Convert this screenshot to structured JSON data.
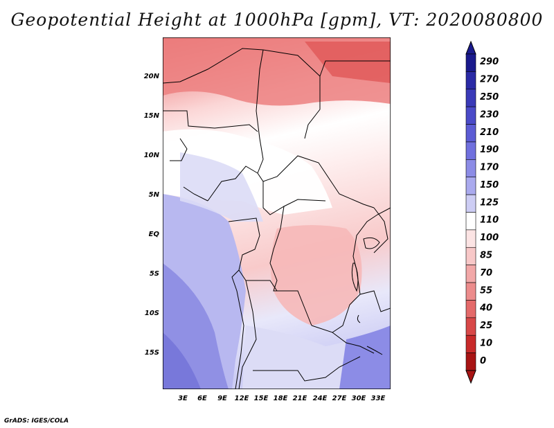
{
  "title": "Geopotential Height at 1000hPa [gpm], VT: 2020080800",
  "credit": "GrADS: IGES/COLA",
  "map": {
    "lat_labels": [
      "20N",
      "15N",
      "10N",
      "5N",
      "EQ",
      "5S",
      "10S",
      "15S"
    ],
    "lon_labels": [
      "3E",
      "6E",
      "9E",
      "12E",
      "15E",
      "18E",
      "21E",
      "24E",
      "27E",
      "30E",
      "33E"
    ]
  },
  "colorbar": {
    "levels": [
      "290",
      "270",
      "250",
      "230",
      "210",
      "190",
      "170",
      "150",
      "125",
      "110",
      "100",
      "85",
      "70",
      "55",
      "40",
      "25",
      "10",
      "0"
    ],
    "colors": [
      "#1a1a8c",
      "#2a2aa6",
      "#3a3ab8",
      "#4a4ac8",
      "#5c5cd4",
      "#7070de",
      "#8c8ce6",
      "#aaaaee",
      "#cdcdf4",
      "#ffffff",
      "#fce4e4",
      "#f8c8c8",
      "#f2a8a8",
      "#ec8c8c",
      "#e46a6a",
      "#d84848",
      "#c82a2a",
      "#a81414"
    ]
  }
}
